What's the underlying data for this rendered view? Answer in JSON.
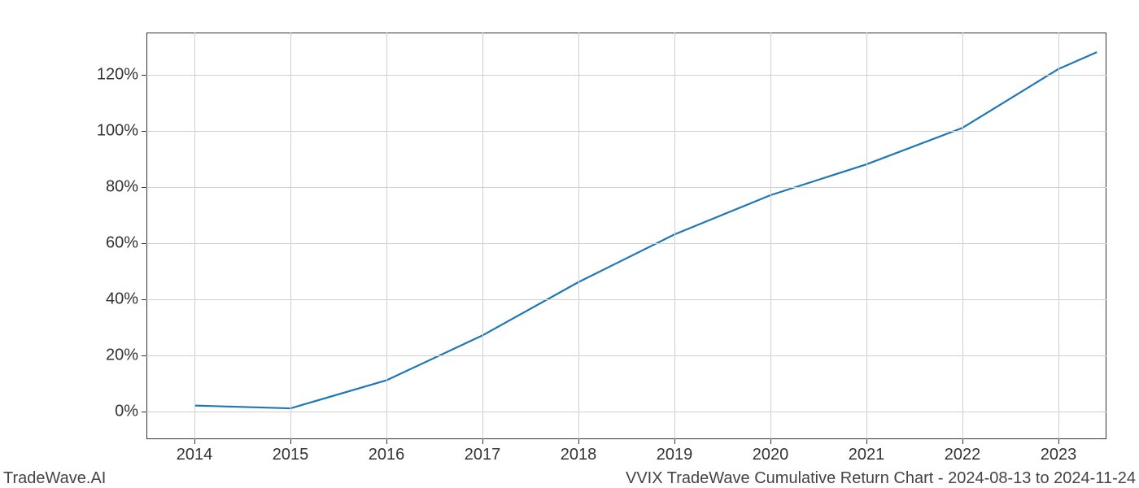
{
  "chart": {
    "type": "line",
    "background_color": "#ffffff",
    "grid_color": "#d0d0d0",
    "border_color": "#333333",
    "line_color": "#1f77b4",
    "line_width": 2.2,
    "xlim": [
      2013.5,
      2023.5
    ],
    "ylim": [
      -10,
      135
    ],
    "x_ticks": [
      2014,
      2015,
      2016,
      2017,
      2018,
      2019,
      2020,
      2021,
      2022,
      2023
    ],
    "x_tick_labels": [
      "2014",
      "2015",
      "2016",
      "2017",
      "2018",
      "2019",
      "2020",
      "2021",
      "2022",
      "2023"
    ],
    "y_ticks": [
      0,
      20,
      40,
      60,
      80,
      100,
      120
    ],
    "y_tick_labels": [
      "0%",
      "20%",
      "40%",
      "60%",
      "80%",
      "100%",
      "120%"
    ],
    "tick_fontsize": 20,
    "series": {
      "x": [
        2014,
        2015,
        2016,
        2017,
        2018,
        2019,
        2020,
        2021,
        2022,
        2023,
        2023.4
      ],
      "y": [
        2,
        1,
        11,
        27,
        46,
        63,
        77,
        88,
        101,
        122,
        128
      ]
    }
  },
  "footer": {
    "left": "TradeWave.AI",
    "right": "VVIX TradeWave Cumulative Return Chart - 2024-08-13 to 2024-11-24",
    "fontsize": 20,
    "color": "#444444"
  }
}
